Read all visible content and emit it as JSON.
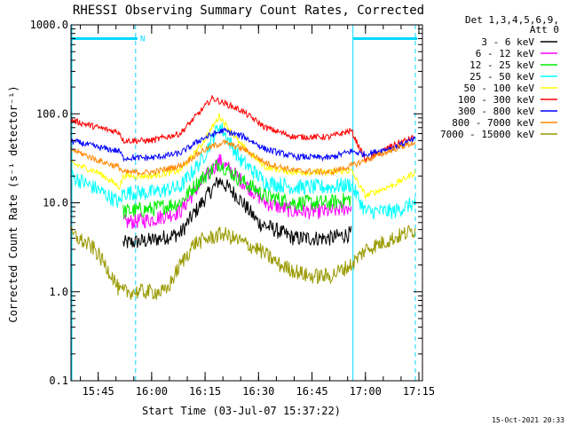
{
  "chart_data": {
    "type": "line",
    "title": "RHESSI Observing Summary Count Rates, Corrected",
    "xlabel": "Start Time (03-Jul-07 15:37:22)",
    "ylabel": "Corrected Count Rate (s⁻¹ detector⁻¹)",
    "y_scale": "log",
    "ylim": [
      0.1,
      1000
    ],
    "xlim": [
      "15:37:22",
      "17:16:00"
    ],
    "y_ticks": [
      "0.1",
      "1.0",
      "10.0",
      "100.0",
      "1000.0"
    ],
    "x_ticks": [
      "15:45",
      "16:00",
      "16:15",
      "16:30",
      "16:45",
      "17:00",
      "17:15"
    ],
    "legend_header": [
      "Det 1,3,4,5,6,9,",
      "Att 0"
    ],
    "legend_position": "right-outside",
    "footer_date": "15-Oct-2021 20:33",
    "annotations": [
      {
        "type": "night_bar",
        "x0": "15:37:22",
        "x1": "15:56:00",
        "y": 700,
        "label": "N"
      },
      {
        "type": "night_bar",
        "x0": "16:56:30",
        "x1": "17:14:30",
        "y": 700
      },
      {
        "type": "dashed_marker",
        "x": "15:55:30"
      },
      {
        "type": "dashed_marker",
        "x": "17:14:00"
      },
      {
        "type": "solid_marker",
        "x": "15:37:22"
      },
      {
        "type": "solid_marker",
        "x": "16:56:30"
      }
    ],
    "marker_color": "#00d8ff",
    "series": [
      {
        "name": "3 - 6 keV",
        "color": "#000000",
        "points": [
          [
            "15:52",
            3.5
          ],
          [
            "16:00",
            3.8
          ],
          [
            "16:08",
            4.5
          ],
          [
            "16:14",
            10
          ],
          [
            "16:19",
            18
          ],
          [
            "16:24",
            12
          ],
          [
            "16:30",
            6
          ],
          [
            "16:40",
            4
          ],
          [
            "16:50",
            4
          ],
          [
            "16:56",
            4.5
          ]
        ]
      },
      {
        "name": "6 - 12 keV",
        "color": "#ff00ff",
        "points": [
          [
            "15:52",
            6
          ],
          [
            "16:00",
            6.5
          ],
          [
            "16:08",
            8
          ],
          [
            "16:13",
            15
          ],
          [
            "16:19",
            30
          ],
          [
            "16:25",
            18
          ],
          [
            "16:32",
            10
          ],
          [
            "16:40",
            8
          ],
          [
            "16:50",
            8
          ],
          [
            "16:56",
            9
          ]
        ]
      },
      {
        "name": "12 - 25 keV",
        "color": "#00ee00",
        "points": [
          [
            "15:52",
            8
          ],
          [
            "16:00",
            8.5
          ],
          [
            "16:08",
            10
          ],
          [
            "16:13",
            17
          ],
          [
            "16:19",
            28
          ],
          [
            "16:25",
            18
          ],
          [
            "16:32",
            12
          ],
          [
            "16:40",
            10
          ],
          [
            "16:50",
            10
          ],
          [
            "16:56",
            11
          ]
        ]
      },
      {
        "name": "25 - 50 keV",
        "color": "#00ffff",
        "points": [
          [
            "15:37:22",
            20
          ],
          [
            "15:45",
            14
          ],
          [
            "15:51",
            10
          ],
          [
            "15:52",
            13
          ],
          [
            "16:00",
            13
          ],
          [
            "16:08",
            15
          ],
          [
            "16:14",
            30
          ],
          [
            "16:19",
            75
          ],
          [
            "16:25",
            30
          ],
          [
            "16:32",
            17
          ],
          [
            "16:40",
            15
          ],
          [
            "16:50",
            15
          ],
          [
            "16:56",
            16
          ],
          [
            "17:00",
            8
          ],
          [
            "17:08",
            8
          ],
          [
            "17:14",
            10
          ]
        ]
      },
      {
        "name": "50 - 100 keV",
        "color": "#ffff00",
        "points": [
          [
            "15:37:22",
            28
          ],
          [
            "15:45",
            22
          ],
          [
            "15:51",
            15
          ],
          [
            "15:52",
            20
          ],
          [
            "16:00",
            20
          ],
          [
            "16:08",
            23
          ],
          [
            "16:14",
            45
          ],
          [
            "16:19",
            95
          ],
          [
            "16:25",
            45
          ],
          [
            "16:32",
            25
          ],
          [
            "16:40",
            22
          ],
          [
            "16:50",
            22
          ],
          [
            "16:56",
            23
          ],
          [
            "17:00",
            12
          ],
          [
            "17:08",
            16
          ],
          [
            "17:14",
            22
          ]
        ]
      },
      {
        "name": "100 - 300 keV",
        "color": "#ff0000",
        "points": [
          [
            "15:37:22",
            85
          ],
          [
            "15:45",
            70
          ],
          [
            "15:51",
            62
          ],
          [
            "15:52",
            50
          ],
          [
            "16:00",
            50
          ],
          [
            "16:08",
            60
          ],
          [
            "16:14",
            110
          ],
          [
            "16:17",
            150
          ],
          [
            "16:25",
            110
          ],
          [
            "16:32",
            70
          ],
          [
            "16:40",
            55
          ],
          [
            "16:50",
            55
          ],
          [
            "16:56",
            65
          ],
          [
            "17:00",
            30
          ],
          [
            "17:08",
            45
          ],
          [
            "17:14",
            55
          ]
        ]
      },
      {
        "name": "300 - 800 keV",
        "color": "#0000ff",
        "points": [
          [
            "15:37:22",
            50
          ],
          [
            "15:45",
            42
          ],
          [
            "15:51",
            38
          ],
          [
            "15:52",
            32
          ],
          [
            "16:00",
            32
          ],
          [
            "16:08",
            36
          ],
          [
            "16:14",
            52
          ],
          [
            "16:20",
            65
          ],
          [
            "16:26",
            55
          ],
          [
            "16:32",
            40
          ],
          [
            "16:40",
            33
          ],
          [
            "16:50",
            32
          ],
          [
            "16:56",
            38
          ],
          [
            "17:00",
            35
          ],
          [
            "17:08",
            42
          ],
          [
            "17:14",
            52
          ]
        ]
      },
      {
        "name": "800 - 7000 keV",
        "color": "#ff8800",
        "points": [
          [
            "15:37:22",
            40
          ],
          [
            "15:45",
            30
          ],
          [
            "15:51",
            25
          ],
          [
            "15:52",
            22
          ],
          [
            "16:00",
            22
          ],
          [
            "16:08",
            26
          ],
          [
            "16:14",
            38
          ],
          [
            "16:20",
            48
          ],
          [
            "16:26",
            40
          ],
          [
            "16:32",
            28
          ],
          [
            "16:40",
            23
          ],
          [
            "16:50",
            22
          ],
          [
            "16:56",
            26
          ],
          [
            "17:00",
            30
          ],
          [
            "17:08",
            40
          ],
          [
            "17:14",
            48
          ]
        ]
      },
      {
        "name": "7000 - 15000 keV",
        "color": "#999900",
        "points": [
          [
            "15:37:22",
            4.5
          ],
          [
            "15:44",
            3
          ],
          [
            "15:49",
            1.5
          ],
          [
            "15:51",
            1
          ],
          [
            "16:00",
            1
          ],
          [
            "16:04",
            1
          ],
          [
            "16:08",
            2
          ],
          [
            "16:12",
            3.5
          ],
          [
            "16:20",
            4.5
          ],
          [
            "16:30",
            3
          ],
          [
            "16:36",
            2
          ],
          [
            "16:44",
            1.5
          ],
          [
            "16:50",
            1.5
          ],
          [
            "16:56",
            2
          ],
          [
            "17:00",
            3
          ],
          [
            "17:08",
            4
          ],
          [
            "17:14",
            5
          ]
        ]
      }
    ]
  }
}
